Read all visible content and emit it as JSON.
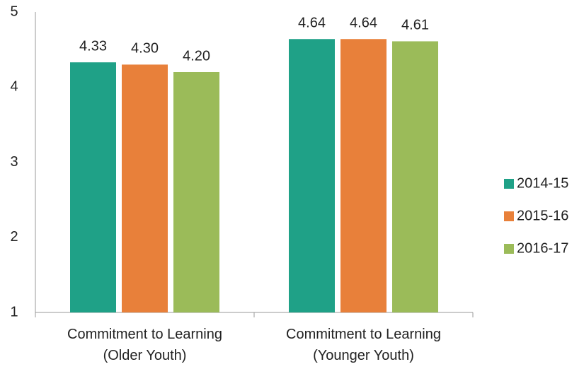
{
  "chart_data": {
    "type": "bar",
    "categories": [
      "Commitment to Learning\n(Older Youth)",
      "Commitment to Learning\n(Younger Youth)"
    ],
    "series": [
      {
        "name": "2014-15",
        "color": "#1fa187",
        "values": [
          4.33,
          4.64
        ],
        "value_labels": [
          "4.33",
          "4.64"
        ]
      },
      {
        "name": "2015-16",
        "color": "#e8803a",
        "values": [
          4.3,
          4.64
        ],
        "value_labels": [
          "4.30",
          "4.64"
        ]
      },
      {
        "name": "2016-17",
        "color": "#9bbb59",
        "values": [
          4.2,
          4.61
        ],
        "value_labels": [
          "4.20",
          "4.61"
        ]
      }
    ],
    "ylim": [
      1,
      5
    ],
    "yticks": [
      1,
      2,
      3,
      4,
      5
    ],
    "grid": false,
    "legend": "right"
  }
}
